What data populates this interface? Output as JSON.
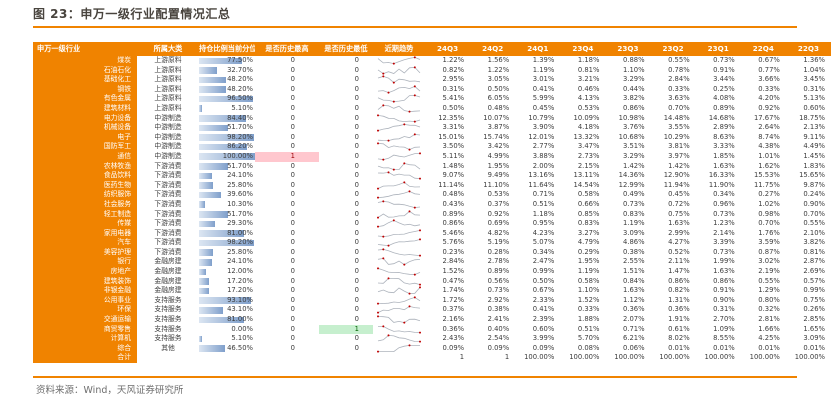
{
  "title": "图 23：申万一级行业配置情况汇总",
  "source": "资料来源：Wind，天风证券研究所",
  "colors": {
    "accent_orange": "#F08300",
    "title_text": "#49443E",
    "source_text": "#6E6E6E",
    "bar_gradient_from": "#DCE6F2",
    "bar_gradient_to": "#7F9FCB",
    "highlight_high_bg": "#FFC7CE",
    "highlight_high_text": "#9C0006",
    "highlight_low_bg": "#C6EFCE",
    "highlight_low_text": "#006100",
    "sparkline": "#ADB3BC",
    "spark_marker": "#C00000"
  },
  "table": {
    "headers": {
      "industry": "申万一级行业",
      "category": "所属大类",
      "percentile": "持仓比例当前分位",
      "is_high": "是否历史最高",
      "is_low": "是否历史最低",
      "trend": "近期趋势"
    }
  },
  "chart_data": {
    "type": "table",
    "title": "图 23：申万一级行业配置情况汇总",
    "value_unit": "%",
    "quarters": [
      "24Q3",
      "24Q2",
      "24Q1",
      "23Q4",
      "23Q3",
      "23Q2",
      "23Q1",
      "22Q4",
      "22Q3"
    ],
    "rows": [
      {
        "industry": "煤炭",
        "category": "上游原料",
        "percentile": 77.5,
        "is_high": 0,
        "is_low": 0,
        "values": [
          1.22,
          1.56,
          1.39,
          1.18,
          0.88,
          0.55,
          0.73,
          0.67,
          1.36
        ]
      },
      {
        "industry": "石油石化",
        "category": "上游原料",
        "percentile": 32.7,
        "is_high": 0,
        "is_low": 0,
        "values": [
          0.82,
          1.22,
          1.19,
          0.81,
          1.1,
          0.78,
          0.91,
          0.77,
          1.04
        ]
      },
      {
        "industry": "基础化工",
        "category": "上游原料",
        "percentile": 48.2,
        "is_high": 0,
        "is_low": 0,
        "values": [
          2.95,
          3.05,
          3.01,
          3.21,
          3.29,
          2.84,
          3.44,
          3.66,
          3.45
        ]
      },
      {
        "industry": "钢铁",
        "category": "上游原料",
        "percentile": 48.2,
        "is_high": 0,
        "is_low": 0,
        "values": [
          0.31,
          0.5,
          0.41,
          0.46,
          0.44,
          0.33,
          0.25,
          0.33,
          0.31
        ]
      },
      {
        "industry": "有色金属",
        "category": "上游原料",
        "percentile": 96.5,
        "is_high": 0,
        "is_low": 0,
        "values": [
          5.41,
          6.05,
          5.99,
          4.13,
          3.82,
          3.63,
          4.08,
          4.2,
          5.13
        ]
      },
      {
        "industry": "建筑材料",
        "category": "上游原料",
        "percentile": 5.1,
        "is_high": 0,
        "is_low": 0,
        "values": [
          0.5,
          0.48,
          0.45,
          0.53,
          0.86,
          0.7,
          0.89,
          0.92,
          0.6
        ]
      },
      {
        "industry": "电力设备",
        "category": "中游制造",
        "percentile": 84.4,
        "is_high": 0,
        "is_low": 0,
        "values": [
          12.35,
          10.07,
          10.79,
          10.09,
          10.98,
          14.48,
          14.68,
          17.67,
          18.75
        ]
      },
      {
        "industry": "机械设备",
        "category": "中游制造",
        "percentile": 51.7,
        "is_high": 0,
        "is_low": 0,
        "values": [
          3.31,
          3.87,
          3.9,
          4.18,
          3.76,
          3.55,
          2.89,
          2.64,
          2.13
        ]
      },
      {
        "industry": "电子",
        "category": "中游制造",
        "percentile": 98.2,
        "is_high": 0,
        "is_low": 0,
        "values": [
          15.01,
          15.74,
          12.01,
          13.32,
          10.68,
          10.29,
          8.63,
          8.74,
          9.11
        ]
      },
      {
        "industry": "国防军工",
        "category": "中游制造",
        "percentile": 86.2,
        "is_high": 0,
        "is_low": 0,
        "values": [
          3.5,
          3.42,
          2.77,
          3.47,
          3.51,
          3.81,
          3.33,
          4.38,
          4.49
        ]
      },
      {
        "industry": "通信",
        "category": "中游制造",
        "percentile": 100.0,
        "is_high": 1,
        "is_low": 0,
        "values": [
          5.11,
          4.99,
          3.88,
          2.73,
          3.29,
          3.97,
          1.85,
          1.01,
          1.45
        ]
      },
      {
        "industry": "农林牧渔",
        "category": "下游消费",
        "percentile": 51.7,
        "is_high": 0,
        "is_low": 0,
        "values": [
          1.48,
          1.95,
          2.0,
          2.15,
          1.42,
          1.42,
          1.63,
          1.62,
          1.83
        ]
      },
      {
        "industry": "食品饮料",
        "category": "下游消费",
        "percentile": 24.1,
        "is_high": 0,
        "is_low": 0,
        "values": [
          9.07,
          9.49,
          13.16,
          13.11,
          14.36,
          12.9,
          16.33,
          15.53,
          15.65
        ]
      },
      {
        "industry": "医药生物",
        "category": "下游消费",
        "percentile": 25.8,
        "is_high": 0,
        "is_low": 0,
        "values": [
          11.14,
          11.1,
          11.64,
          14.54,
          12.99,
          11.94,
          11.9,
          11.75,
          9.87
        ]
      },
      {
        "industry": "纺织服饰",
        "category": "下游消费",
        "percentile": 39.6,
        "is_high": 0,
        "is_low": 0,
        "values": [
          0.48,
          0.53,
          0.71,
          0.58,
          0.49,
          0.45,
          0.34,
          0.27,
          0.24
        ]
      },
      {
        "industry": "社会服务",
        "category": "下游消费",
        "percentile": 10.3,
        "is_high": 0,
        "is_low": 0,
        "values": [
          0.43,
          0.37,
          0.51,
          0.66,
          0.73,
          0.72,
          0.96,
          1.02,
          0.9
        ]
      },
      {
        "industry": "轻工制造",
        "category": "下游消费",
        "percentile": 51.7,
        "is_high": 0,
        "is_low": 0,
        "values": [
          0.89,
          0.92,
          1.18,
          0.85,
          0.83,
          0.75,
          0.73,
          0.98,
          0.7
        ]
      },
      {
        "industry": "传媒",
        "category": "下游消费",
        "percentile": 29.3,
        "is_high": 0,
        "is_low": 0,
        "values": [
          0.86,
          0.69,
          0.95,
          0.83,
          1.19,
          1.63,
          1.23,
          0.7,
          0.55
        ]
      },
      {
        "industry": "家用电器",
        "category": "下游消费",
        "percentile": 81.0,
        "is_high": 0,
        "is_low": 0,
        "values": [
          5.46,
          4.82,
          4.23,
          3.27,
          3.09,
          2.99,
          2.14,
          1.76,
          2.1
        ]
      },
      {
        "industry": "汽车",
        "category": "下游消费",
        "percentile": 98.2,
        "is_high": 0,
        "is_low": 0,
        "values": [
          5.76,
          5.19,
          5.07,
          4.79,
          4.86,
          4.27,
          3.39,
          3.59,
          3.82
        ]
      },
      {
        "industry": "美容护理",
        "category": "下游消费",
        "percentile": 25.8,
        "is_high": 0,
        "is_low": 0,
        "values": [
          0.23,
          0.28,
          0.34,
          0.29,
          0.38,
          0.52,
          0.73,
          0.87,
          0.81
        ]
      },
      {
        "industry": "银行",
        "category": "金融房建",
        "percentile": 24.1,
        "is_high": 0,
        "is_low": 0,
        "values": [
          2.84,
          2.78,
          2.47,
          1.95,
          2.55,
          2.11,
          1.99,
          3.02,
          2.87
        ]
      },
      {
        "industry": "房地产",
        "category": "金融房建",
        "percentile": 12.0,
        "is_high": 0,
        "is_low": 0,
        "values": [
          1.52,
          0.89,
          0.99,
          1.19,
          1.51,
          1.47,
          1.63,
          2.19,
          2.69
        ]
      },
      {
        "industry": "建筑装饰",
        "category": "金融房建",
        "percentile": 17.2,
        "is_high": 0,
        "is_low": 0,
        "values": [
          0.47,
          0.56,
          0.5,
          0.58,
          0.84,
          0.86,
          0.86,
          0.55,
          0.57
        ]
      },
      {
        "industry": "非银金融",
        "category": "金融房建",
        "percentile": 17.2,
        "is_high": 0,
        "is_low": 0,
        "values": [
          1.74,
          0.73,
          0.67,
          1.1,
          1.63,
          0.82,
          0.91,
          1.29,
          0.99
        ]
      },
      {
        "industry": "公用事业",
        "category": "支持服务",
        "percentile": 93.1,
        "is_high": 0,
        "is_low": 0,
        "values": [
          1.72,
          2.92,
          2.33,
          1.52,
          1.12,
          1.31,
          0.9,
          0.8,
          0.75
        ]
      },
      {
        "industry": "环保",
        "category": "支持服务",
        "percentile": 43.1,
        "is_high": 0,
        "is_low": 0,
        "values": [
          0.37,
          0.38,
          0.41,
          0.33,
          0.36,
          0.36,
          0.31,
          0.32,
          0.26
        ]
      },
      {
        "industry": "交通运输",
        "category": "支持服务",
        "percentile": 81.0,
        "is_high": 0,
        "is_low": 0,
        "values": [
          2.16,
          2.41,
          2.39,
          1.88,
          2.07,
          1.91,
          2.7,
          2.81,
          2.85
        ]
      },
      {
        "industry": "商贸零售",
        "category": "支持服务",
        "percentile": 0.0,
        "is_high": 0,
        "is_low": 1,
        "values": [
          0.36,
          0.4,
          0.6,
          0.51,
          0.71,
          0.61,
          1.09,
          1.66,
          1.65
        ]
      },
      {
        "industry": "计算机",
        "category": "支持服务",
        "percentile": 5.1,
        "is_high": 0,
        "is_low": 0,
        "values": [
          2.43,
          2.54,
          3.99,
          5.7,
          6.21,
          8.02,
          8.55,
          4.25,
          3.09
        ]
      },
      {
        "industry": "综合",
        "category": "其他",
        "percentile": 46.5,
        "is_high": 0,
        "is_low": 0,
        "values": [
          0.09,
          0.09,
          0.09,
          0.08,
          0.06,
          0.01,
          0.01,
          0.01,
          0.01
        ]
      }
    ],
    "total": {
      "industry": "合计",
      "values": [
        "1",
        "1",
        "100.00%",
        "100.00%",
        "100.00%",
        "100.00%",
        "100.00%",
        "100.00%",
        "100.00%"
      ]
    }
  }
}
